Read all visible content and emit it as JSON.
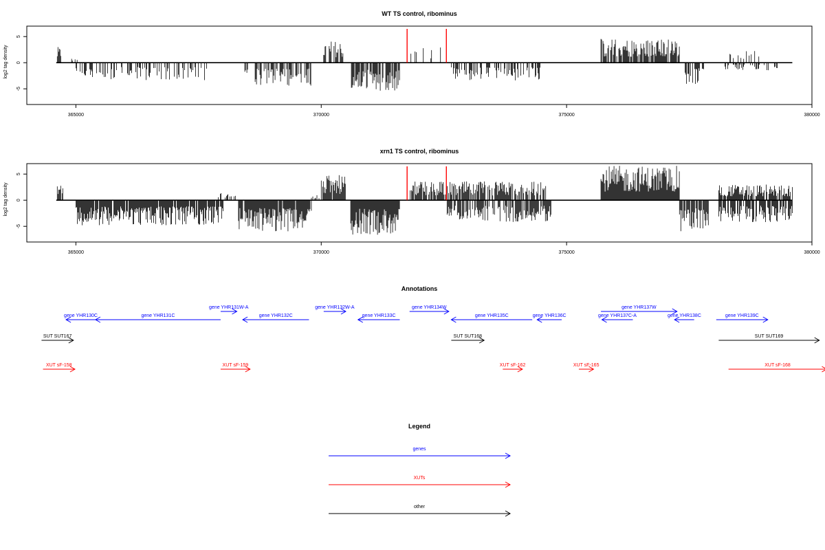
{
  "chart_data": [
    {
      "type": "bar",
      "title": "WT TS control, ribominus",
      "ylabel": "log2 tag density",
      "xlim": [
        364000,
        380000
      ],
      "ylim": [
        -8,
        7
      ],
      "xticks": [
        365000,
        370000,
        375000,
        380000
      ],
      "yticks": [
        -5,
        0,
        5
      ],
      "baseline_range": [
        364600,
        379600
      ],
      "highlight_x": [
        371750,
        372550
      ],
      "highlight_color": "#ff0000",
      "bar_color": "#000000",
      "density_segments": [
        {
          "from": 364620,
          "to": 364700,
          "sign": 1,
          "amp": 2.5,
          "fill": 0.8
        },
        {
          "from": 364900,
          "to": 365100,
          "sign": 1,
          "amp": 1.0,
          "fill": 0.3
        },
        {
          "from": 365000,
          "to": 367800,
          "sign": -1,
          "amp": 2.8,
          "fill": 0.4
        },
        {
          "from": 368400,
          "to": 369800,
          "sign": -1,
          "amp": 3.8,
          "fill": 0.5
        },
        {
          "from": 370050,
          "to": 370450,
          "sign": 1,
          "amp": 3.5,
          "fill": 0.5
        },
        {
          "from": 370600,
          "to": 371600,
          "sign": -1,
          "amp": 4.5,
          "fill": 0.8
        },
        {
          "from": 371800,
          "to": 372600,
          "sign": 1,
          "amp": 2.5,
          "fill": 0.2
        },
        {
          "from": 372650,
          "to": 374500,
          "sign": -1,
          "amp": 3.0,
          "fill": 0.4
        },
        {
          "from": 375700,
          "to": 377300,
          "sign": 1,
          "amp": 3.8,
          "fill": 0.8
        },
        {
          "from": 377400,
          "to": 377800,
          "sign": -1,
          "amp": 3.5,
          "fill": 0.6
        },
        {
          "from": 378300,
          "to": 379000,
          "sign": 1,
          "amp": 2.0,
          "fill": 0.2
        },
        {
          "from": 378200,
          "to": 379300,
          "sign": -1,
          "amp": 1.2,
          "fill": 0.3
        }
      ]
    },
    {
      "type": "bar",
      "title": "xrn1 TS control, ribominus",
      "ylabel": "log2 tag density",
      "xlim": [
        364000,
        380000
      ],
      "ylim": [
        -8,
        7
      ],
      "xticks": [
        365000,
        370000,
        375000,
        380000
      ],
      "yticks": [
        -5,
        0,
        5
      ],
      "baseline_range": [
        364600,
        379600
      ],
      "highlight_x": [
        371750,
        372550
      ],
      "highlight_color": "#ff0000",
      "bar_color": "#000000",
      "density_segments": [
        {
          "from": 364620,
          "to": 364750,
          "sign": 1,
          "amp": 3.5,
          "fill": 0.8
        },
        {
          "from": 365000,
          "to": 368000,
          "sign": -1,
          "amp": 4.0,
          "fill": 0.9
        },
        {
          "from": 367900,
          "to": 368300,
          "sign": 1,
          "amp": 1.5,
          "fill": 0.3
        },
        {
          "from": 368300,
          "to": 369800,
          "sign": -1,
          "amp": 5.0,
          "fill": 0.9
        },
        {
          "from": 369800,
          "to": 370000,
          "sign": 1,
          "amp": 1.0,
          "fill": 0.3
        },
        {
          "from": 370000,
          "to": 370500,
          "sign": 1,
          "amp": 4.0,
          "fill": 0.9
        },
        {
          "from": 370600,
          "to": 371600,
          "sign": -1,
          "amp": 5.5,
          "fill": 1.0
        },
        {
          "from": 371800,
          "to": 374600,
          "sign": 1,
          "amp": 3.0,
          "fill": 0.8
        },
        {
          "from": 372550,
          "to": 374700,
          "sign": -1,
          "amp": 3.5,
          "fill": 0.7
        },
        {
          "from": 375700,
          "to": 377300,
          "sign": 1,
          "amp": 5.5,
          "fill": 1.0
        },
        {
          "from": 377300,
          "to": 377900,
          "sign": -1,
          "amp": 5.0,
          "fill": 0.9
        },
        {
          "from": 378100,
          "to": 379600,
          "sign": 1,
          "amp": 2.5,
          "fill": 0.8
        },
        {
          "from": 378100,
          "to": 379600,
          "sign": -1,
          "amp": 3.5,
          "fill": 0.8
        }
      ]
    }
  ],
  "annotations": {
    "title": "Annotations",
    "xlim": [
      364000,
      380000
    ],
    "genes": [
      {
        "label": "gene YHR130C",
        "start": 364800,
        "end": 365400,
        "strand": "-",
        "row": 0
      },
      {
        "label": "gene YHR131C",
        "start": 365400,
        "end": 367950,
        "strand": "-",
        "row": 0
      },
      {
        "label": "gene YHR131W-A",
        "start": 367950,
        "end": 368280,
        "strand": "+",
        "row": 1
      },
      {
        "label": "gene YHR132C",
        "start": 368400,
        "end": 369750,
        "strand": "-",
        "row": 0
      },
      {
        "label": "gene YHR132W-A",
        "start": 370050,
        "end": 370500,
        "strand": "+",
        "row": 1
      },
      {
        "label": "gene YHR133C",
        "start": 370750,
        "end": 371600,
        "strand": "-",
        "row": 0
      },
      {
        "label": "gene YHR134W",
        "start": 371800,
        "end": 372600,
        "strand": "+",
        "row": 1
      },
      {
        "label": "gene YHR135C",
        "start": 372650,
        "end": 374300,
        "strand": "-",
        "row": 0
      },
      {
        "label": "gene YHR136C",
        "start": 374400,
        "end": 374900,
        "strand": "-",
        "row": 0
      },
      {
        "label": "gene YHR137W",
        "start": 375700,
        "end": 377250,
        "strand": "+",
        "row": 1
      },
      {
        "label": "gene YHR137C-A",
        "start": 375720,
        "end": 376350,
        "strand": "-",
        "row": 0
      },
      {
        "label": "gene YHR138C",
        "start": 377200,
        "end": 377600,
        "strand": "-",
        "row": 0
      },
      {
        "label": "gene YHR139C",
        "start": 378050,
        "end": 379100,
        "strand": "+",
        "row": 0
      }
    ],
    "other": [
      {
        "label": "SUT SUT167",
        "start": 364300,
        "end": 364950,
        "strand": "+"
      },
      {
        "label": "SUT SUT168",
        "start": 372650,
        "end": 373320,
        "strand": "+"
      },
      {
        "label": "SUT SUT169",
        "start": 378100,
        "end": 380150,
        "strand": "+"
      }
    ],
    "xuts": [
      {
        "label": "XUT sF-158",
        "start": 364330,
        "end": 364980,
        "strand": "+"
      },
      {
        "label": "XUT sF-159",
        "start": 367950,
        "end": 368550,
        "strand": "+"
      },
      {
        "label": "XUT sF-162",
        "start": 373700,
        "end": 374100,
        "strand": "+"
      },
      {
        "label": "XUT sF-165",
        "start": 375250,
        "end": 375550,
        "strand": "+"
      },
      {
        "label": "XUT sF-168",
        "start": 378300,
        "end": 380300,
        "strand": "+"
      }
    ]
  },
  "legend": {
    "title": "Legend",
    "items": [
      {
        "label": "genes",
        "color": "#0000ff"
      },
      {
        "label": "XUTs",
        "color": "#ff0000"
      },
      {
        "label": "other",
        "color": "#000000"
      }
    ]
  }
}
